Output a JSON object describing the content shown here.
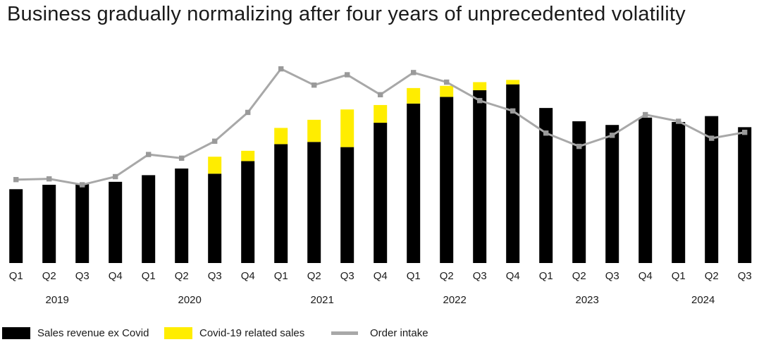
{
  "title": "Business gradually normalizing after four years of unprecedented volatility",
  "colors": {
    "sales_bar": "#000000",
    "covid_bar": "#FFED00",
    "order_line": "#A8A8A8",
    "order_marker": "#9A9A9A",
    "text": "#1A1A1A",
    "background": "#FFFFFF"
  },
  "legend": {
    "items": [
      {
        "label": "Sales revenue ex Covid",
        "swatch": "rect",
        "color": "#000000"
      },
      {
        "label": "Covid-19 related sales",
        "swatch": "rect",
        "color": "#FFED00"
      },
      {
        "label": "Order intake",
        "swatch": "line",
        "color": "#A8A8A8"
      }
    ]
  },
  "chart_data": {
    "type": "bar",
    "subtype": "stacked bars with overlaid line (combo chart)",
    "title": "Business gradually normalizing after four years of unprecedented volatility",
    "xlabel": "",
    "ylabel": "",
    "value_scale_note": "No numeric y-axis shown in chart; values are indexed with Q1 2019 sales = 100",
    "grid": "off",
    "legend_position": "bottom-left",
    "quarters": [
      "Q1",
      "Q2",
      "Q3",
      "Q4",
      "Q1",
      "Q2",
      "Q3",
      "Q4",
      "Q1",
      "Q2",
      "Q3",
      "Q4",
      "Q1",
      "Q2",
      "Q3",
      "Q4",
      "Q1",
      "Q2",
      "Q3",
      "Q4",
      "Q1",
      "Q2",
      "Q3"
    ],
    "year_groups": [
      {
        "label": "2019",
        "count": 4
      },
      {
        "label": "2020",
        "count": 4
      },
      {
        "label": "2021",
        "count": 4
      },
      {
        "label": "2022",
        "count": 4
      },
      {
        "label": "2023",
        "count": 4
      },
      {
        "label": "2024",
        "count": 3
      }
    ],
    "series": [
      {
        "name": "Sales revenue ex Covid",
        "type": "bar",
        "color": "#000000",
        "values": [
          100,
          106,
          107,
          110,
          119,
          128,
          121,
          138,
          161,
          164,
          157,
          190,
          216,
          225,
          234,
          242,
          210,
          192,
          187,
          197,
          191,
          199,
          184
        ]
      },
      {
        "name": "Covid-19 related sales",
        "type": "bar",
        "stacked_on": "Sales revenue ex Covid",
        "color": "#FFED00",
        "values": [
          0,
          0,
          0,
          0,
          0,
          0,
          23,
          14,
          22,
          30,
          51,
          24,
          21,
          15,
          11,
          6,
          0,
          0,
          0,
          0,
          0,
          0,
          0
        ]
      },
      {
        "name": "Order intake",
        "type": "line",
        "color": "#A8A8A8",
        "marker": "square",
        "values": [
          113,
          114,
          106,
          117,
          147,
          142,
          165,
          204,
          263,
          241,
          255,
          228,
          258,
          245,
          220,
          206,
          176,
          158,
          173,
          201,
          192,
          169,
          177
        ]
      }
    ]
  }
}
